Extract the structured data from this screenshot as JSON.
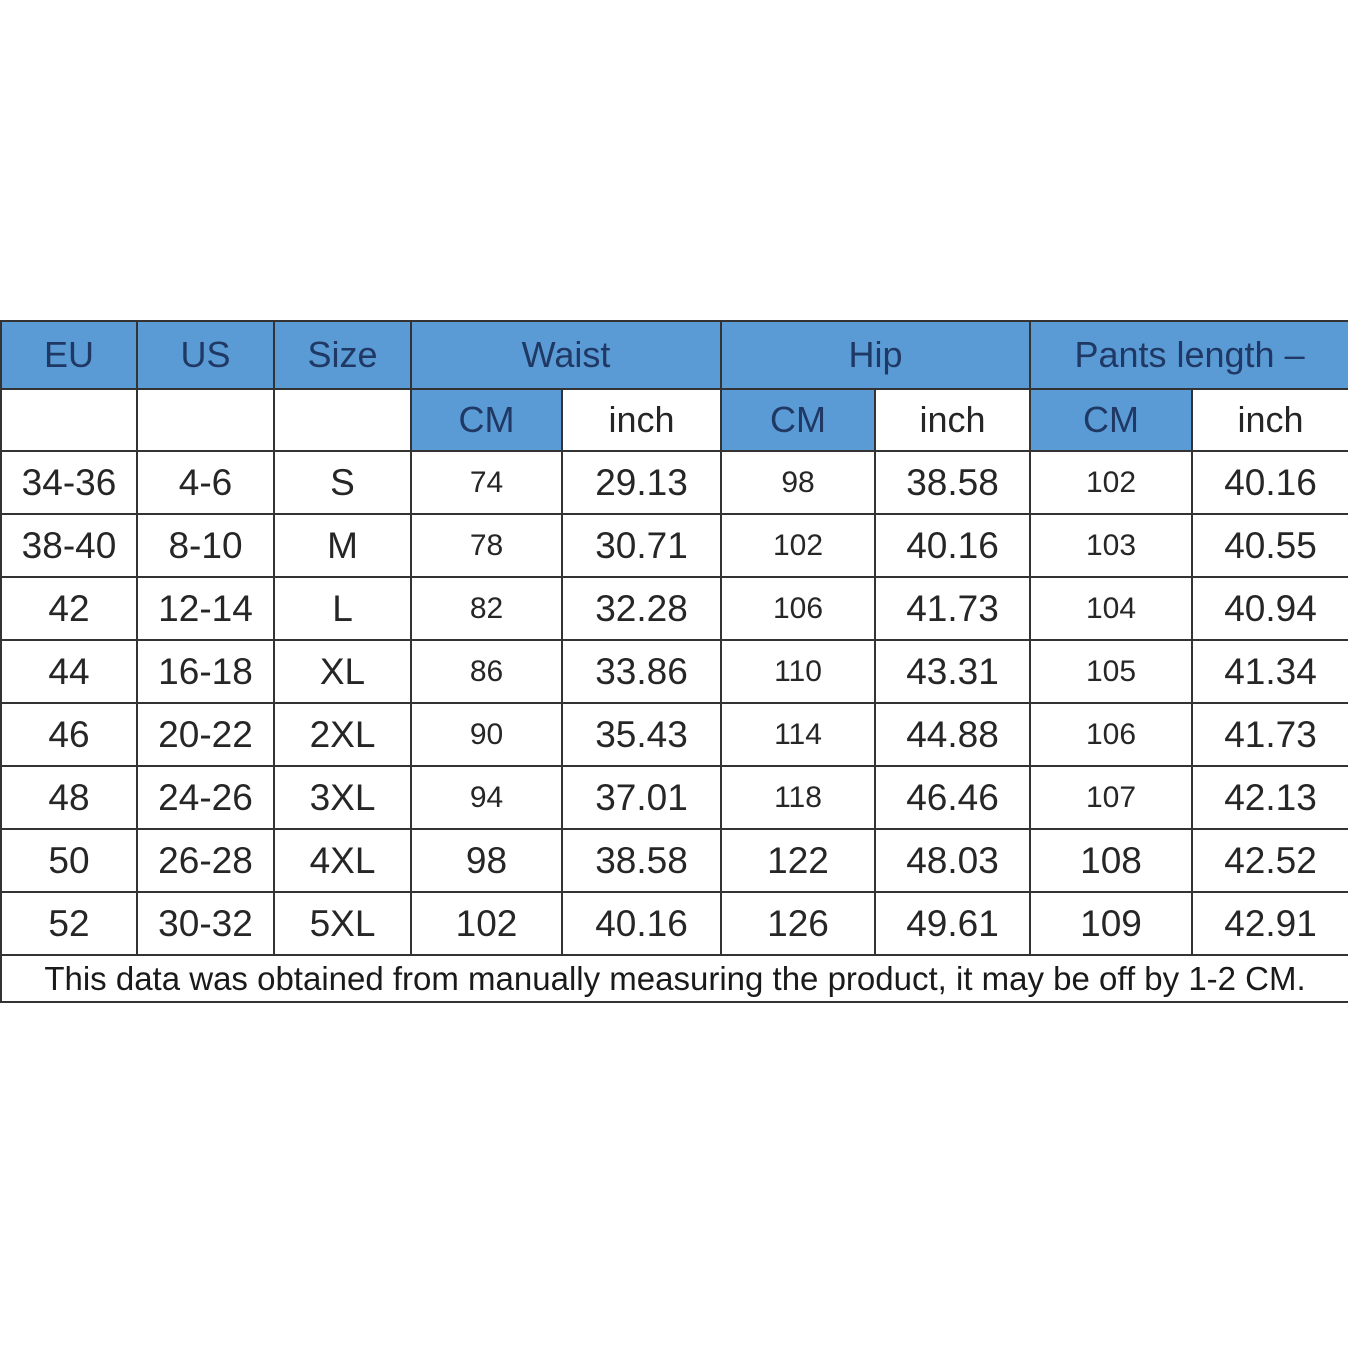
{
  "colors": {
    "header_blue": "#5B9BD5",
    "header_text": "#1F3864",
    "body_text": "#262626",
    "footer_text": "#1a1a1a",
    "border_color": "#333333"
  },
  "table": {
    "header": {
      "eu": "EU",
      "us": "US",
      "size": "Size",
      "waist": "Waist",
      "hip": "Hip",
      "pants_length": "Pants length –",
      "cm": "CM",
      "inch": "inch"
    },
    "rows": [
      {
        "eu": "34-36",
        "us": "4-6",
        "size": "S",
        "waist_cm": "74",
        "waist_inch": "29.13",
        "hip_cm": "98",
        "hip_inch": "38.58",
        "pants_cm": "102",
        "pants_inch": "40.16"
      },
      {
        "eu": "38-40",
        "us": "8-10",
        "size": "M",
        "waist_cm": "78",
        "waist_inch": "30.71",
        "hip_cm": "102",
        "hip_inch": "40.16",
        "pants_cm": "103",
        "pants_inch": "40.55"
      },
      {
        "eu": "42",
        "us": "12-14",
        "size": "L",
        "waist_cm": "82",
        "waist_inch": "32.28",
        "hip_cm": "106",
        "hip_inch": "41.73",
        "pants_cm": "104",
        "pants_inch": "40.94"
      },
      {
        "eu": "44",
        "us": "16-18",
        "size": "XL",
        "waist_cm": "86",
        "waist_inch": "33.86",
        "hip_cm": "110",
        "hip_inch": "43.31",
        "pants_cm": "105",
        "pants_inch": "41.34"
      },
      {
        "eu": "46",
        "us": "20-22",
        "size": "2XL",
        "waist_cm": "90",
        "waist_inch": "35.43",
        "hip_cm": "114",
        "hip_inch": "44.88",
        "pants_cm": "106",
        "pants_inch": "41.73"
      },
      {
        "eu": "48",
        "us": "24-26",
        "size": "3XL",
        "waist_cm": "94",
        "waist_inch": "37.01",
        "hip_cm": "118",
        "hip_inch": "46.46",
        "pants_cm": "107",
        "pants_inch": "42.13"
      },
      {
        "eu": "50",
        "us": "26-28",
        "size": "4XL",
        "waist_cm": "98",
        "waist_inch": "38.58",
        "hip_cm": "122",
        "hip_inch": "48.03",
        "pants_cm": "108",
        "pants_inch": "42.52"
      },
      {
        "eu": "52",
        "us": "30-32",
        "size": "5XL",
        "waist_cm": "102",
        "waist_inch": "40.16",
        "hip_cm": "126",
        "hip_inch": "49.61",
        "pants_cm": "109",
        "pants_inch": "42.91"
      }
    ],
    "footer_note": "This data was obtained from manually measuring the product, it may be off by 1-2 CM."
  },
  "chart_data": {
    "type": "table",
    "title": "Garment size chart",
    "columns": [
      "EU",
      "US",
      "Size",
      "Waist CM",
      "Waist inch",
      "Hip CM",
      "Hip inch",
      "Pants length CM",
      "Pants length inch"
    ],
    "rows": [
      [
        "34-36",
        "4-6",
        "S",
        "74",
        "29.13",
        "98",
        "38.58",
        "102",
        "40.16"
      ],
      [
        "38-40",
        "8-10",
        "M",
        "78",
        "30.71",
        "102",
        "40.16",
        "103",
        "40.55"
      ],
      [
        "42",
        "12-14",
        "L",
        "82",
        "32.28",
        "106",
        "41.73",
        "104",
        "40.94"
      ],
      [
        "44",
        "16-18",
        "XL",
        "86",
        "33.86",
        "110",
        "43.31",
        "105",
        "41.34"
      ],
      [
        "46",
        "20-22",
        "2XL",
        "90",
        "35.43",
        "114",
        "44.88",
        "106",
        "41.73"
      ],
      [
        "48",
        "24-26",
        "3XL",
        "94",
        "37.01",
        "118",
        "46.46",
        "107",
        "42.13"
      ],
      [
        "50",
        "26-28",
        "4XL",
        "98",
        "38.58",
        "122",
        "48.03",
        "108",
        "42.52"
      ],
      [
        "52",
        "30-32",
        "5XL",
        "102",
        "40.16",
        "126",
        "49.61",
        "109",
        "42.91"
      ]
    ],
    "note": "This data was obtained from manually measuring the product, it may be off by 1-2 CM."
  }
}
